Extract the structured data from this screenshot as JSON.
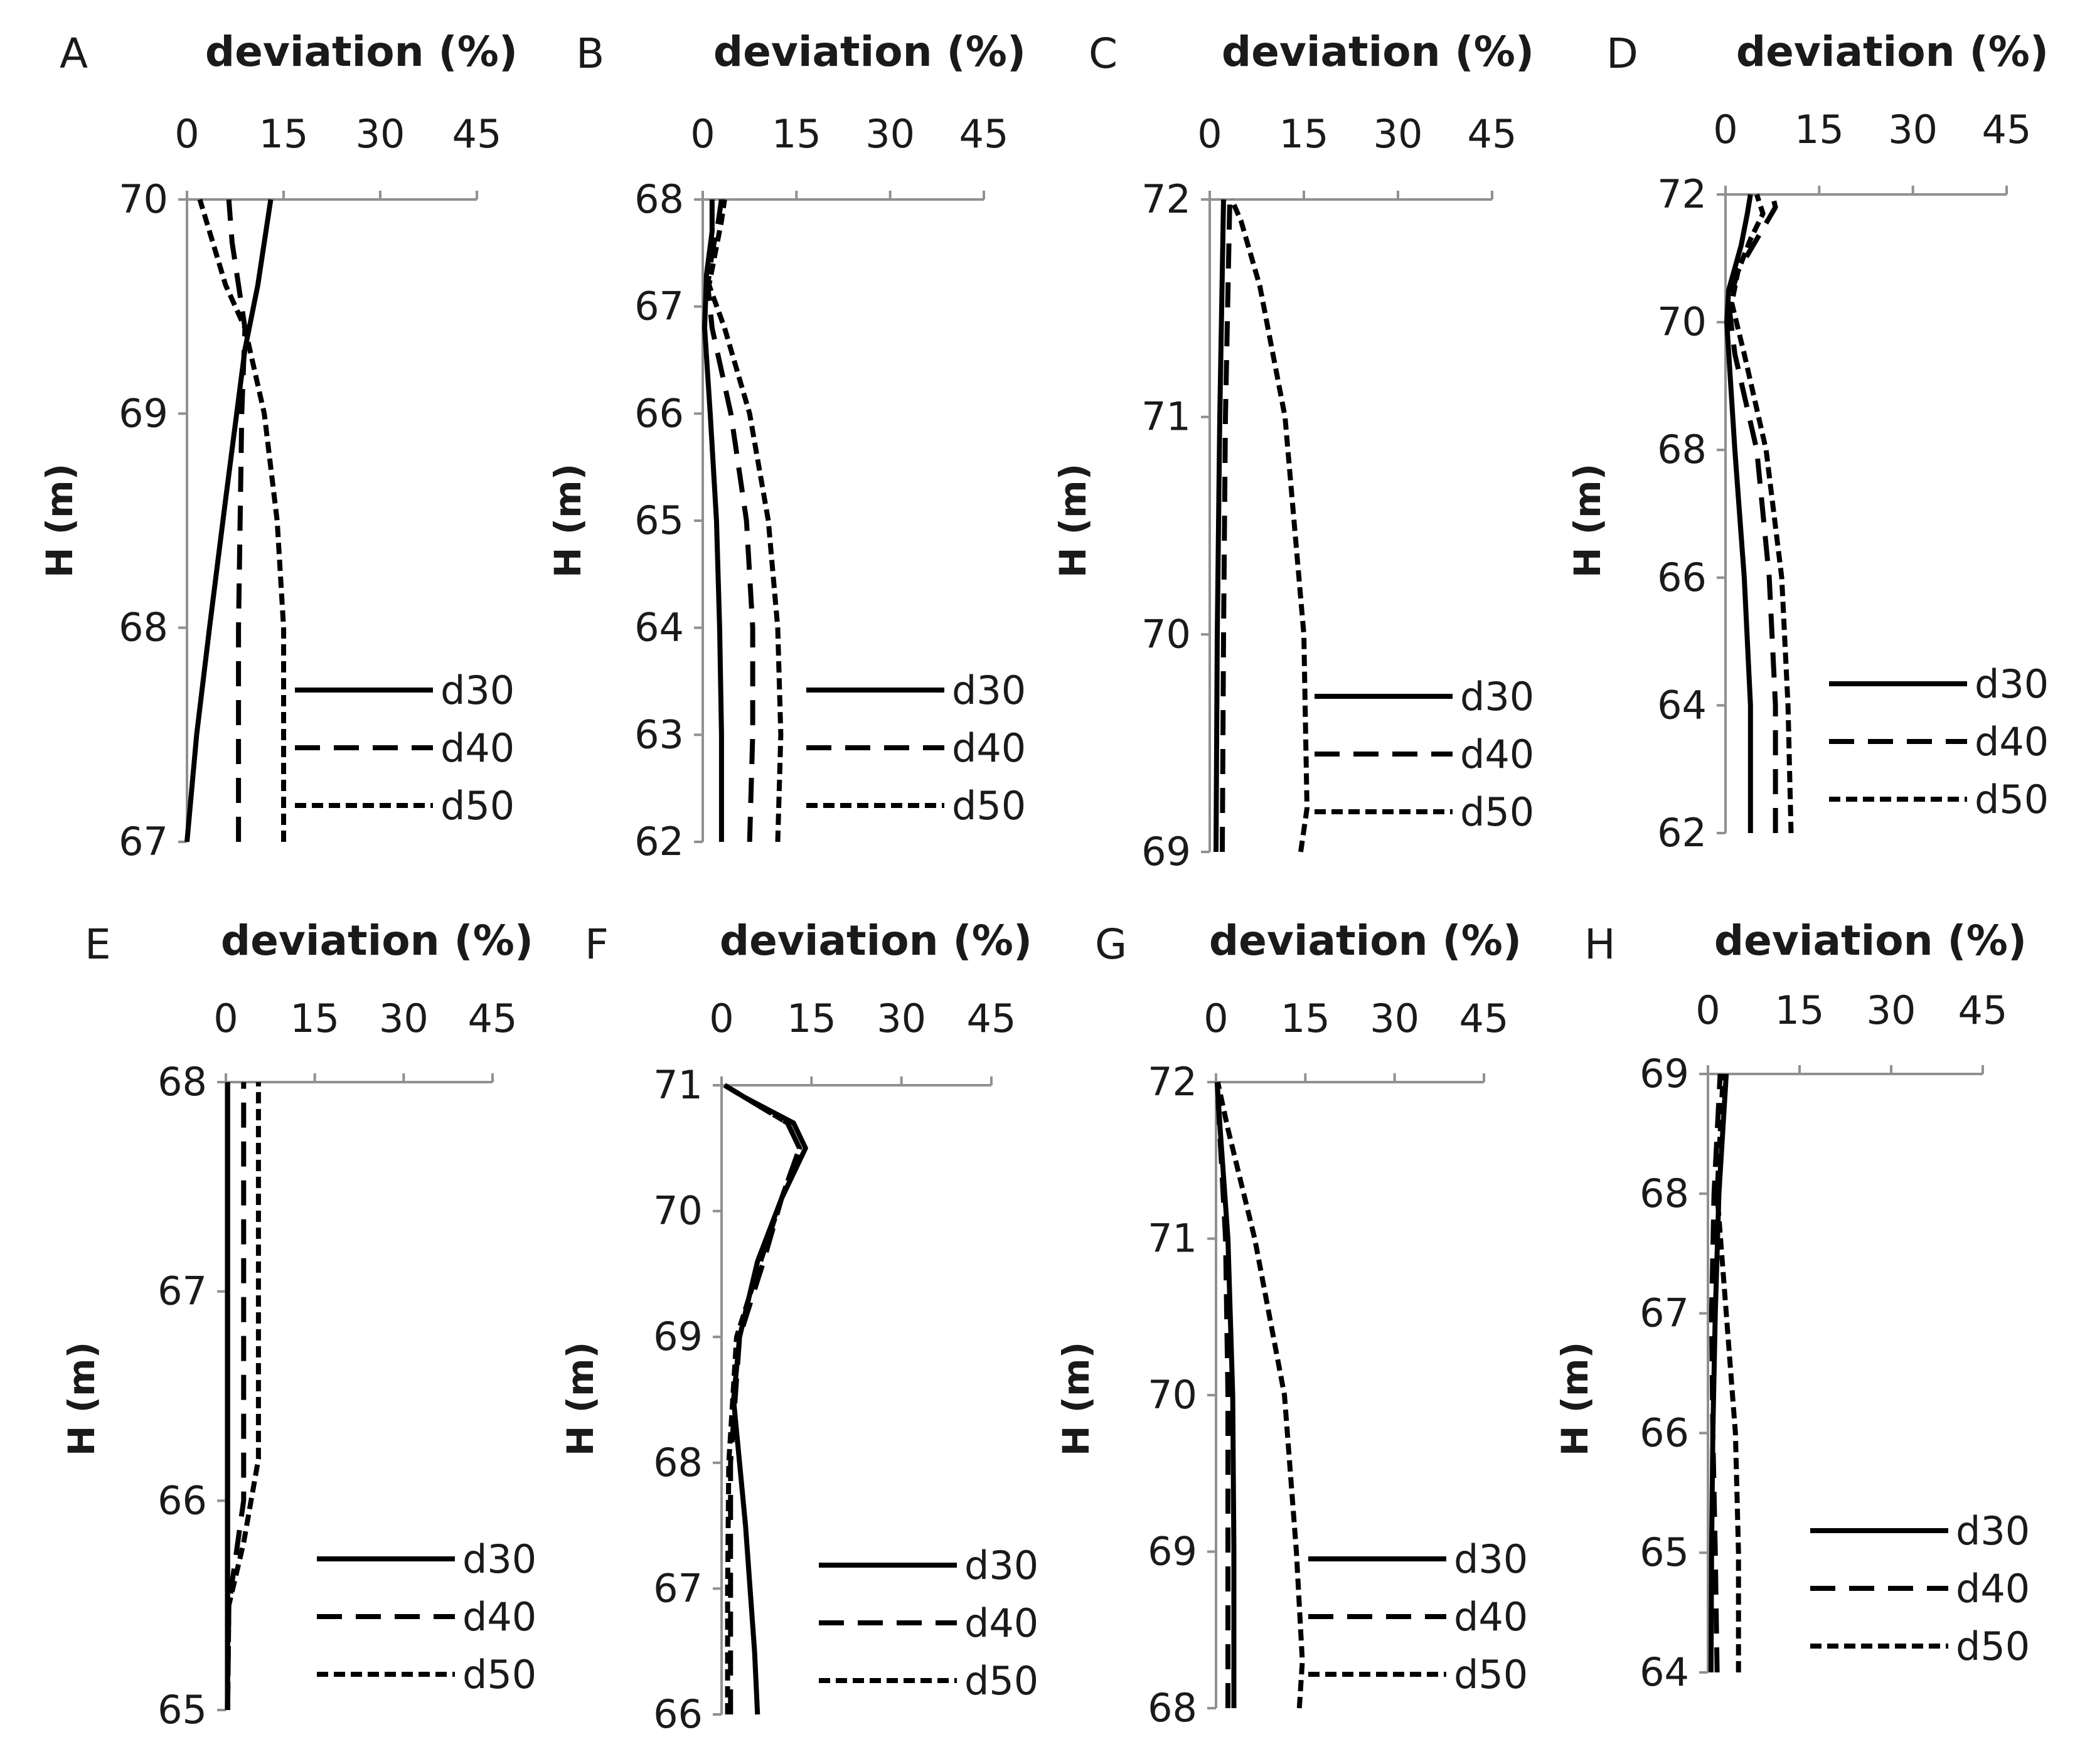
{
  "chart_data": [
    {
      "panel": "A",
      "type": "line",
      "xlabel": "deviation (%)",
      "ylabel": "H (m)",
      "xlim": [
        0,
        45
      ],
      "xticks": [
        "0",
        "15",
        "30",
        "45"
      ],
      "ylim": [
        67,
        70
      ],
      "yticks": [
        "67",
        "68",
        "69",
        "70"
      ],
      "legend": [
        "d30",
        "d40",
        "d50"
      ],
      "series": [
        {
          "name": "d30",
          "points": [
            [
              0,
              67
            ],
            [
              1.5,
              67.5
            ],
            [
              3.5,
              68
            ],
            [
              6,
              68.6
            ],
            [
              9,
              69.3
            ],
            [
              11,
              69.6
            ],
            [
              13,
              70
            ]
          ]
        },
        {
          "name": "d40",
          "points": [
            [
              8,
              67
            ],
            [
              8,
              68
            ],
            [
              8.5,
              69
            ],
            [
              9,
              69.4
            ],
            [
              7,
              69.8
            ],
            [
              6.5,
              70
            ]
          ]
        },
        {
          "name": "d50",
          "points": [
            [
              15,
              67
            ],
            [
              15,
              68
            ],
            [
              14,
              68.5
            ],
            [
              12,
              69
            ],
            [
              9,
              69.4
            ],
            [
              6,
              69.6
            ],
            [
              3,
              69.9
            ],
            [
              2,
              70
            ]
          ]
        }
      ]
    },
    {
      "panel": "B",
      "type": "line",
      "xlabel": "deviation (%)",
      "ylabel": "H (m)",
      "xlim": [
        0,
        45
      ],
      "xticks": [
        "0",
        "15",
        "30",
        "45"
      ],
      "ylim": [
        62,
        68
      ],
      "yticks": [
        "62",
        "63",
        "64",
        "65",
        "66",
        "67",
        "68"
      ],
      "legend": [
        "d30",
        "d40",
        "d50"
      ],
      "series": [
        {
          "name": "d30",
          "points": [
            [
              3,
              62
            ],
            [
              3,
              63
            ],
            [
              2.7,
              64
            ],
            [
              2.2,
              65
            ],
            [
              1.2,
              66
            ],
            [
              0.3,
              66.8
            ],
            [
              0.6,
              67.3
            ],
            [
              1.5,
              67.7
            ],
            [
              1.5,
              68
            ]
          ]
        },
        {
          "name": "d40",
          "points": [
            [
              7.5,
              62
            ],
            [
              8,
              63
            ],
            [
              8,
              64
            ],
            [
              7,
              65
            ],
            [
              4.5,
              66
            ],
            [
              1.5,
              66.8
            ],
            [
              0.8,
              67.2
            ],
            [
              1.5,
              67.5
            ],
            [
              2.5,
              67.8
            ],
            [
              3,
              68
            ]
          ]
        },
        {
          "name": "d50",
          "points": [
            [
              12,
              62
            ],
            [
              12.5,
              63
            ],
            [
              12,
              64
            ],
            [
              10.5,
              65
            ],
            [
              7.5,
              66
            ],
            [
              3.5,
              66.8
            ],
            [
              1,
              67.2
            ],
            [
              2,
              67.5
            ],
            [
              3,
              67.8
            ],
            [
              3.5,
              68
            ]
          ]
        }
      ]
    },
    {
      "panel": "C",
      "type": "line",
      "xlabel": "deviation (%)",
      "ylabel": "H (m)",
      "xlim": [
        0,
        45
      ],
      "xticks": [
        "0",
        "15",
        "30",
        "45"
      ],
      "ylim": [
        69,
        72
      ],
      "yticks": [
        "69",
        "70",
        "71",
        "72"
      ],
      "legend": [
        "d30",
        "d40",
        "d50"
      ],
      "series": [
        {
          "name": "d30",
          "points": [
            [
              1,
              69
            ],
            [
              1.2,
              70
            ],
            [
              1.6,
              71
            ],
            [
              2.2,
              72
            ]
          ]
        },
        {
          "name": "d40",
          "points": [
            [
              2,
              69
            ],
            [
              2.2,
              70
            ],
            [
              2.5,
              71
            ],
            [
              3.2,
              72
            ]
          ]
        },
        {
          "name": "d50",
          "points": [
            [
              14.5,
              69
            ],
            [
              15.5,
              69.2
            ],
            [
              15,
              70
            ],
            [
              12,
              71
            ],
            [
              8,
              71.6
            ],
            [
              5,
              71.9
            ],
            [
              3.5,
              72
            ]
          ]
        }
      ]
    },
    {
      "panel": "D",
      "type": "line",
      "xlabel": "deviation (%)",
      "ylabel": "H (m)",
      "xlim": [
        0,
        45
      ],
      "xticks": [
        "0",
        "15",
        "30",
        "45"
      ],
      "ylim": [
        62,
        72
      ],
      "yticks": [
        "62",
        "64",
        "66",
        "68",
        "70",
        "72"
      ],
      "legend": [
        "d30",
        "d40",
        "d50"
      ],
      "series": [
        {
          "name": "d30",
          "points": [
            [
              4,
              62
            ],
            [
              4,
              64
            ],
            [
              3,
              66
            ],
            [
              1.5,
              68
            ],
            [
              0.2,
              70
            ],
            [
              0.5,
              70.5
            ],
            [
              2.5,
              71.2
            ],
            [
              3.5,
              71.7
            ],
            [
              4,
              72
            ]
          ]
        },
        {
          "name": "d40",
          "points": [
            [
              8,
              62
            ],
            [
              8,
              64
            ],
            [
              7,
              66
            ],
            [
              5,
              68
            ],
            [
              1.5,
              69.5
            ],
            [
              0.5,
              70.3
            ],
            [
              2,
              70.8
            ],
            [
              5,
              71.3
            ],
            [
              8,
              71.8
            ],
            [
              7.5,
              72
            ]
          ]
        },
        {
          "name": "d50",
          "points": [
            [
              10.5,
              62
            ],
            [
              10,
              64
            ],
            [
              9,
              66
            ],
            [
              6.5,
              68
            ],
            [
              3,
              69.5
            ],
            [
              1,
              70.3
            ],
            [
              2,
              70.8
            ],
            [
              4,
              71.3
            ],
            [
              6,
              71.7
            ],
            [
              5,
              72
            ]
          ]
        }
      ]
    },
    {
      "panel": "E",
      "type": "line",
      "xlabel": "deviation (%)",
      "ylabel": "H (m)",
      "xlim": [
        0,
        45
      ],
      "xticks": [
        "0",
        "15",
        "30",
        "45"
      ],
      "ylim": [
        65,
        68
      ],
      "yticks": [
        "65",
        "66",
        "67",
        "68"
      ],
      "legend": [
        "d30",
        "d40",
        "d50"
      ],
      "series": [
        {
          "name": "d30",
          "points": [
            [
              0.3,
              65
            ],
            [
              0.3,
              66
            ],
            [
              0.3,
              67
            ],
            [
              0.3,
              68
            ]
          ]
        },
        {
          "name": "d40",
          "points": [
            [
              0.3,
              65
            ],
            [
              0.5,
              65.5
            ],
            [
              1.5,
              65.7
            ],
            [
              3,
              66
            ],
            [
              3,
              67
            ],
            [
              3,
              68
            ]
          ]
        },
        {
          "name": "d50",
          "points": [
            [
              0.3,
              65
            ],
            [
              0.5,
              65.5
            ],
            [
              3,
              65.8
            ],
            [
              5.5,
              66.2
            ],
            [
              5.5,
              67
            ],
            [
              5.5,
              68
            ]
          ]
        }
      ]
    },
    {
      "panel": "F",
      "type": "line",
      "xlabel": "deviation (%)",
      "ylabel": "H (m)",
      "xlim": [
        0,
        45
      ],
      "xticks": [
        "0",
        "15",
        "30",
        "45"
      ],
      "ylim": [
        66,
        71
      ],
      "yticks": [
        "66",
        "67",
        "68",
        "69",
        "70",
        "71"
      ],
      "legend": [
        "d30",
        "d40",
        "d50"
      ],
      "series": [
        {
          "name": "d30",
          "points": [
            [
              6,
              66
            ],
            [
              5.5,
              66.5
            ],
            [
              4,
              67.5
            ],
            [
              2,
              68.5
            ],
            [
              3,
              69
            ],
            [
              6,
              69.6
            ],
            [
              10,
              70.1
            ],
            [
              14,
              70.5
            ],
            [
              12,
              70.7
            ],
            [
              4,
              70.9
            ],
            [
              0.5,
              71
            ]
          ]
        },
        {
          "name": "d40",
          "points": [
            [
              1.5,
              66
            ],
            [
              1.5,
              67
            ],
            [
              1.5,
              68
            ],
            [
              3,
              69
            ],
            [
              7,
              69.6
            ],
            [
              10,
              70.1
            ],
            [
              13,
              70.5
            ],
            [
              11,
              70.7
            ],
            [
              4,
              70.9
            ],
            [
              0.5,
              71
            ]
          ]
        },
        {
          "name": "d50",
          "points": [
            [
              1,
              66
            ],
            [
              1,
              67
            ],
            [
              1.2,
              68
            ],
            [
              2.5,
              69
            ],
            [
              6.5,
              69.6
            ],
            [
              10,
              70.1
            ],
            [
              13,
              70.5
            ],
            [
              11,
              70.7
            ],
            [
              4,
              70.9
            ],
            [
              0.5,
              71
            ]
          ]
        }
      ]
    },
    {
      "panel": "G",
      "type": "line",
      "xlabel": "deviation (%)",
      "ylabel": "H (m)",
      "xlim": [
        0,
        45
      ],
      "xticks": [
        "0",
        "15",
        "30",
        "45"
      ],
      "ylim": [
        68,
        72
      ],
      "yticks": [
        "68",
        "69",
        "70",
        "71",
        "72"
      ],
      "legend": [
        "d30",
        "d40",
        "d50"
      ],
      "series": [
        {
          "name": "d30",
          "points": [
            [
              3,
              68
            ],
            [
              3,
              69
            ],
            [
              2.8,
              70
            ],
            [
              2,
              71
            ],
            [
              0.7,
              71.7
            ],
            [
              0.2,
              72
            ]
          ]
        },
        {
          "name": "d40",
          "points": [
            [
              2,
              68
            ],
            [
              2,
              69
            ],
            [
              2,
              70
            ],
            [
              1.6,
              71
            ],
            [
              0.6,
              71.7
            ],
            [
              0.2,
              72
            ]
          ]
        },
        {
          "name": "d50",
          "points": [
            [
              14,
              68
            ],
            [
              14.5,
              68.3
            ],
            [
              13.5,
              69
            ],
            [
              11.5,
              70
            ],
            [
              6.5,
              71
            ],
            [
              2,
              71.7
            ],
            [
              0.3,
              72
            ]
          ]
        }
      ]
    },
    {
      "panel": "H",
      "type": "line",
      "xlabel": "deviation (%)",
      "ylabel": "H (m)",
      "xlim": [
        0,
        45
      ],
      "xticks": [
        "0",
        "15",
        "30",
        "45"
      ],
      "ylim": [
        64,
        69
      ],
      "yticks": [
        "64",
        "65",
        "66",
        "67",
        "68",
        "69"
      ],
      "legend": [
        "d30",
        "d40",
        "d50"
      ],
      "series": [
        {
          "name": "d30",
          "points": [
            [
              0.5,
              64
            ],
            [
              0.6,
              65
            ],
            [
              0.8,
              66
            ],
            [
              1.2,
              67
            ],
            [
              1.8,
              68
            ],
            [
              3,
              69
            ]
          ]
        },
        {
          "name": "d40",
          "points": [
            [
              1.5,
              64
            ],
            [
              1.2,
              65
            ],
            [
              0.8,
              66
            ],
            [
              0.6,
              67
            ],
            [
              1,
              68
            ],
            [
              2,
              69
            ]
          ]
        },
        {
          "name": "d50",
          "points": [
            [
              5,
              64
            ],
            [
              5,
              65
            ],
            [
              4.5,
              66
            ],
            [
              3,
              67
            ],
            [
              1.5,
              68
            ],
            [
              2.5,
              69
            ]
          ]
        }
      ]
    }
  ]
}
